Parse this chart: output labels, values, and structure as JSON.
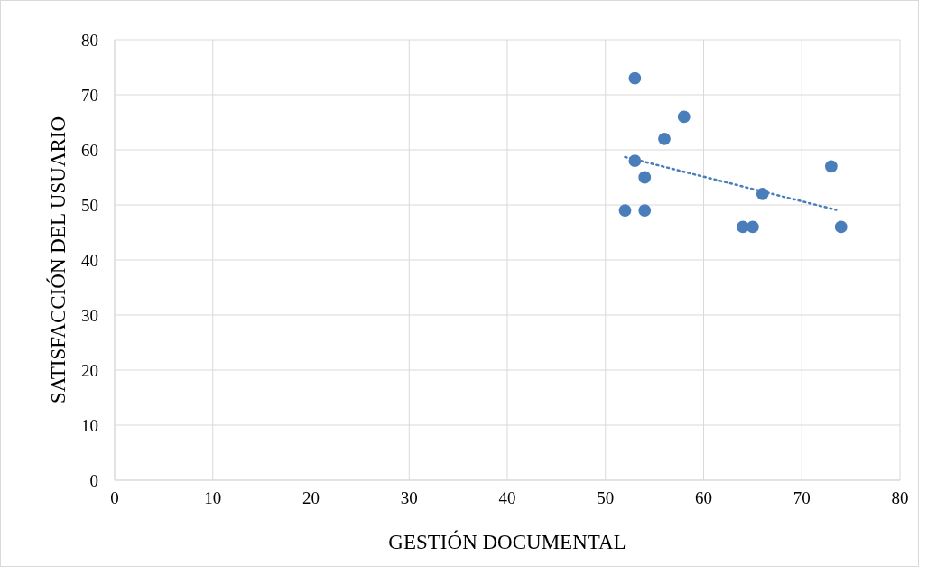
{
  "chart_data": {
    "type": "scatter",
    "xlabel": "GESTIÓN DOCUMENTAL",
    "ylabel": "SATISFACCIÓN DEL USUARIO",
    "xlim": [
      0,
      80
    ],
    "xticks": [
      0,
      10,
      20,
      30,
      40,
      50,
      60,
      70,
      80
    ],
    "ylim": [
      0,
      80
    ],
    "yticks": [
      0,
      10,
      20,
      30,
      40,
      50,
      60,
      70,
      80
    ],
    "grid": true,
    "marker": "circle",
    "series": [
      {
        "color": "#4a7ebb",
        "x": [
          53,
          58,
          56,
          53,
          54,
          52,
          54,
          73,
          66,
          64,
          65,
          74
        ],
        "values": [
          73,
          66,
          62,
          58,
          55,
          49,
          49,
          57,
          52,
          46,
          46,
          46
        ]
      },
      {
        "type": "line",
        "color": "#4a7ebb",
        "marker": "none",
        "line_style": "dotted",
        "x": [
          52,
          73.5
        ],
        "values": [
          58.7,
          49.1
        ]
      }
    ]
  }
}
